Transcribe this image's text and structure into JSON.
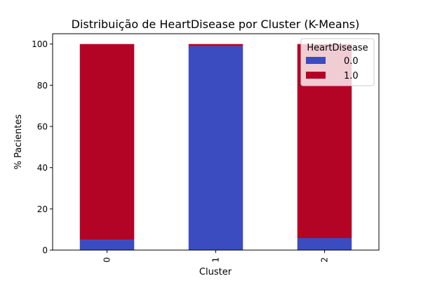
{
  "chart_data": {
    "type": "bar",
    "stacked": true,
    "title": "Distribuição de HeartDisease por Cluster (K-Means)",
    "xlabel": "Cluster",
    "ylabel": "% Pacientes",
    "categories": [
      "0",
      "1",
      "2"
    ],
    "series": [
      {
        "name": "0.0",
        "values": [
          5.1,
          99.0,
          5.8
        ],
        "color": "#3b4cc0"
      },
      {
        "name": "1.0",
        "values": [
          94.9,
          1.0,
          94.2
        ],
        "color": "#b40426"
      }
    ],
    "ylim": [
      0,
      105
    ],
    "yticks": [
      0,
      20,
      40,
      60,
      80,
      100
    ],
    "legend": {
      "title": "HeartDisease",
      "position": "top-right"
    },
    "grid": false
  }
}
